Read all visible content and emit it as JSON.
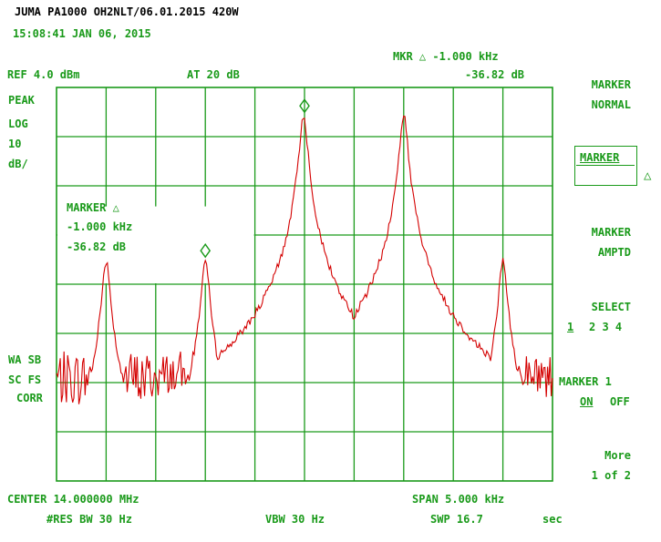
{
  "header": {
    "title": "JUMA PA1000 OH2NLT/06.01.2015 420W",
    "timestamp": "15:08:41 JAN 06, 2015",
    "marker_readout": "MKR △ -1.000 kHz",
    "marker_level": "-36.82 dB",
    "ref_level": "REF 4.0 dBm",
    "attenuation": "AT 20 dB"
  },
  "left_labels": {
    "detector": "PEAK",
    "scale_type": "LOG",
    "scale_value": "10",
    "scale_unit": "dB/",
    "wa_sb": "WA SB",
    "sc_fs": "SC FS",
    "corr": "CORR"
  },
  "marker_box": {
    "title": "MARKER △",
    "freq": "-1.000 kHz",
    "level": "-36.82 dB"
  },
  "softkeys": {
    "marker_normal_1": "MARKER",
    "marker_normal_2": "NORMAL",
    "marker_delta": "MARKER",
    "delta_symbol": "△",
    "marker_amptd_1": "MARKER",
    "marker_amptd_2": "AMPTD",
    "select_1": "SELECT",
    "select_num_1": "1",
    "select_nums": "2 3 4",
    "marker1_title": "MARKER 1",
    "marker1_on": "ON",
    "marker1_off": "OFF",
    "more_1": "More",
    "more_2": "1 of 2"
  },
  "footer": {
    "center": "CENTER 14.000000 MHz",
    "span": "SPAN 5.000 kHz",
    "res_bw": "#RES BW 30 Hz",
    "vbw": "VBW 30 Hz",
    "sweep": "SWP 16.7",
    "sweep_unit": "sec"
  },
  "chart_data": {
    "type": "line",
    "x_unit": "kHz offset from center",
    "xlim": [
      -2.5,
      2.5
    ],
    "ylim": [
      -96,
      4
    ],
    "ylabel": "dBm",
    "grid": true,
    "colors": {
      "trace": "#d40000",
      "grid": "#1a9a1a"
    },
    "peaks": [
      {
        "x": -2.0,
        "y": -40
      },
      {
        "x": -1.0,
        "y": -40
      },
      {
        "x": -0.01,
        "y": -3
      },
      {
        "x": 1.0,
        "y": -3
      },
      {
        "x": 2.0,
        "y": -40
      }
    ],
    "noise_floor": {
      "left": -70,
      "between_inner": -62,
      "right": -70
    },
    "markers": [
      {
        "label": "reference",
        "x": 0.0,
        "y": -3.0
      },
      {
        "label": "delta",
        "x": -1.0,
        "y": -39.8
      }
    ]
  }
}
